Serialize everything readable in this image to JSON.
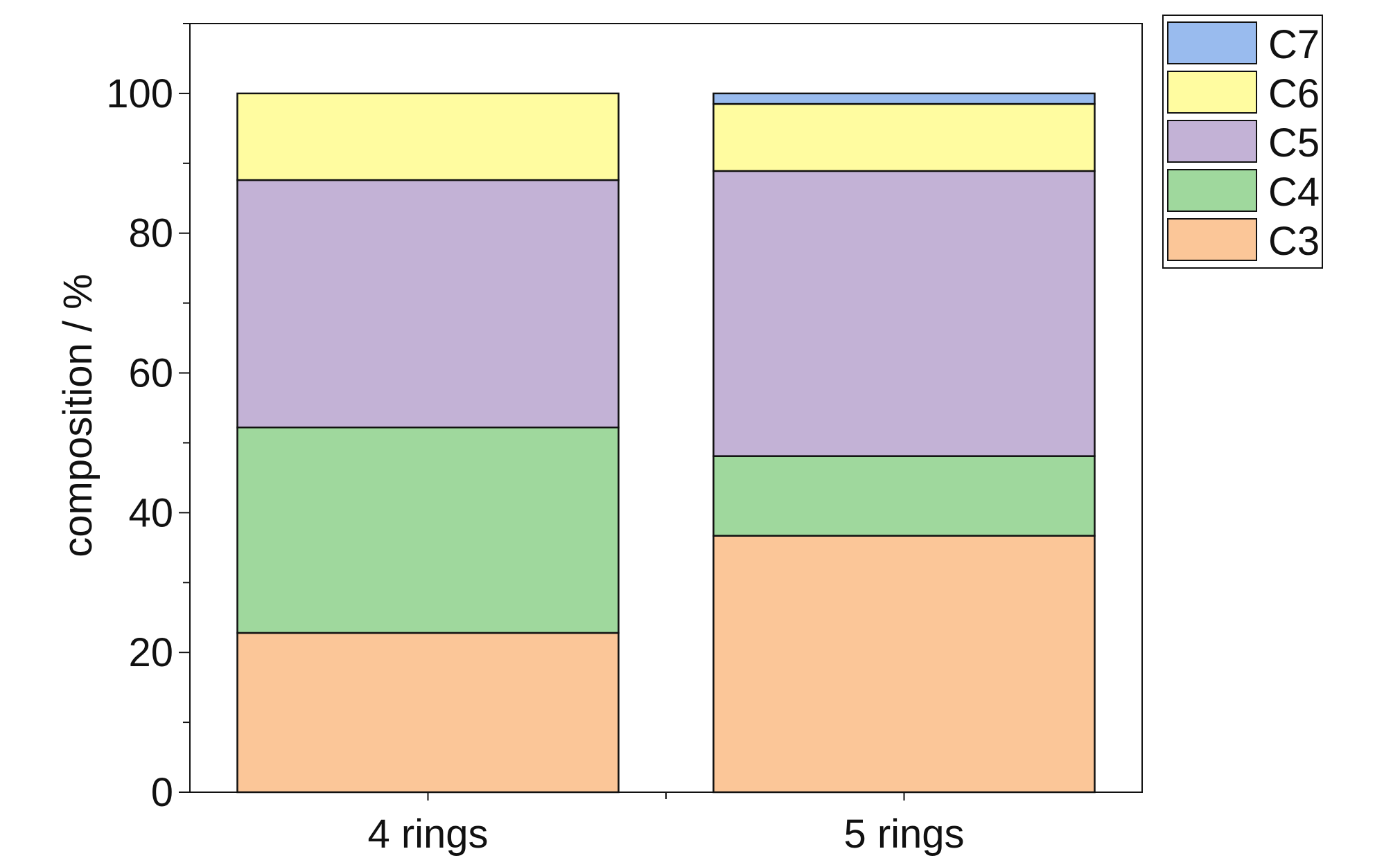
{
  "chart_data": {
    "type": "bar",
    "stacked": true,
    "categories": [
      "4 rings",
      "5 rings"
    ],
    "series": [
      {
        "name": "C3",
        "color": "#fbc698",
        "values": [
          22.8,
          36.7
        ]
      },
      {
        "name": "C4",
        "color": "#9fd89d",
        "values": [
          29.4,
          11.4
        ]
      },
      {
        "name": "C5",
        "color": "#c3b2d6",
        "values": [
          35.4,
          40.8
        ]
      },
      {
        "name": "C6",
        "color": "#fffca0",
        "values": [
          12.4,
          9.6
        ]
      },
      {
        "name": "C7",
        "color": "#99bbee",
        "values": [
          0.0,
          1.5
        ]
      }
    ],
    "ylabel": "composition / %",
    "xlabel": "",
    "ylim": [
      0,
      110
    ],
    "yticks": [
      0,
      20,
      40,
      60,
      80,
      100
    ],
    "ytick_labels": [
      "0",
      "20",
      "40",
      "60",
      "80",
      "100"
    ],
    "grid": false,
    "legend": {
      "placement": "top-right-outside",
      "order": [
        "C7",
        "C6",
        "C5",
        "C4",
        "C3"
      ]
    }
  }
}
